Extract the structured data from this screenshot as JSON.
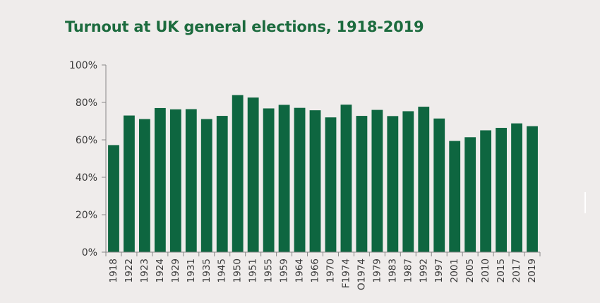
{
  "chart_data": {
    "type": "bar",
    "title": "Turnout at UK general elections, 1918-2019",
    "xlabel": "",
    "ylabel": "",
    "categories": [
      "1918",
      "1922",
      "1923",
      "1924",
      "1929",
      "1931",
      "1935",
      "1945",
      "1950",
      "1951",
      "1955",
      "1959",
      "1964",
      "1966",
      "1970",
      "F1974",
      "O1974",
      "1979",
      "1983",
      "1987",
      "1992",
      "1997",
      "2001",
      "2005",
      "2010",
      "2015",
      "2017",
      "2019"
    ],
    "values": [
      57.2,
      73.0,
      71.1,
      77.0,
      76.3,
      76.4,
      71.1,
      72.8,
      83.9,
      82.6,
      76.8,
      78.7,
      77.1,
      75.8,
      72.0,
      78.8,
      72.8,
      76.0,
      72.7,
      75.3,
      77.7,
      71.4,
      59.4,
      61.4,
      65.1,
      66.4,
      68.8,
      67.3
    ],
    "ylim": [
      0,
      100
    ],
    "yticks": [
      "0%",
      "20%",
      "40%",
      "60%",
      "80%",
      "100%"
    ],
    "grid": false,
    "legend": "none",
    "bar_color": "#0e6640",
    "axis_color": "#888888",
    "title_color": "#1c6b3e"
  }
}
